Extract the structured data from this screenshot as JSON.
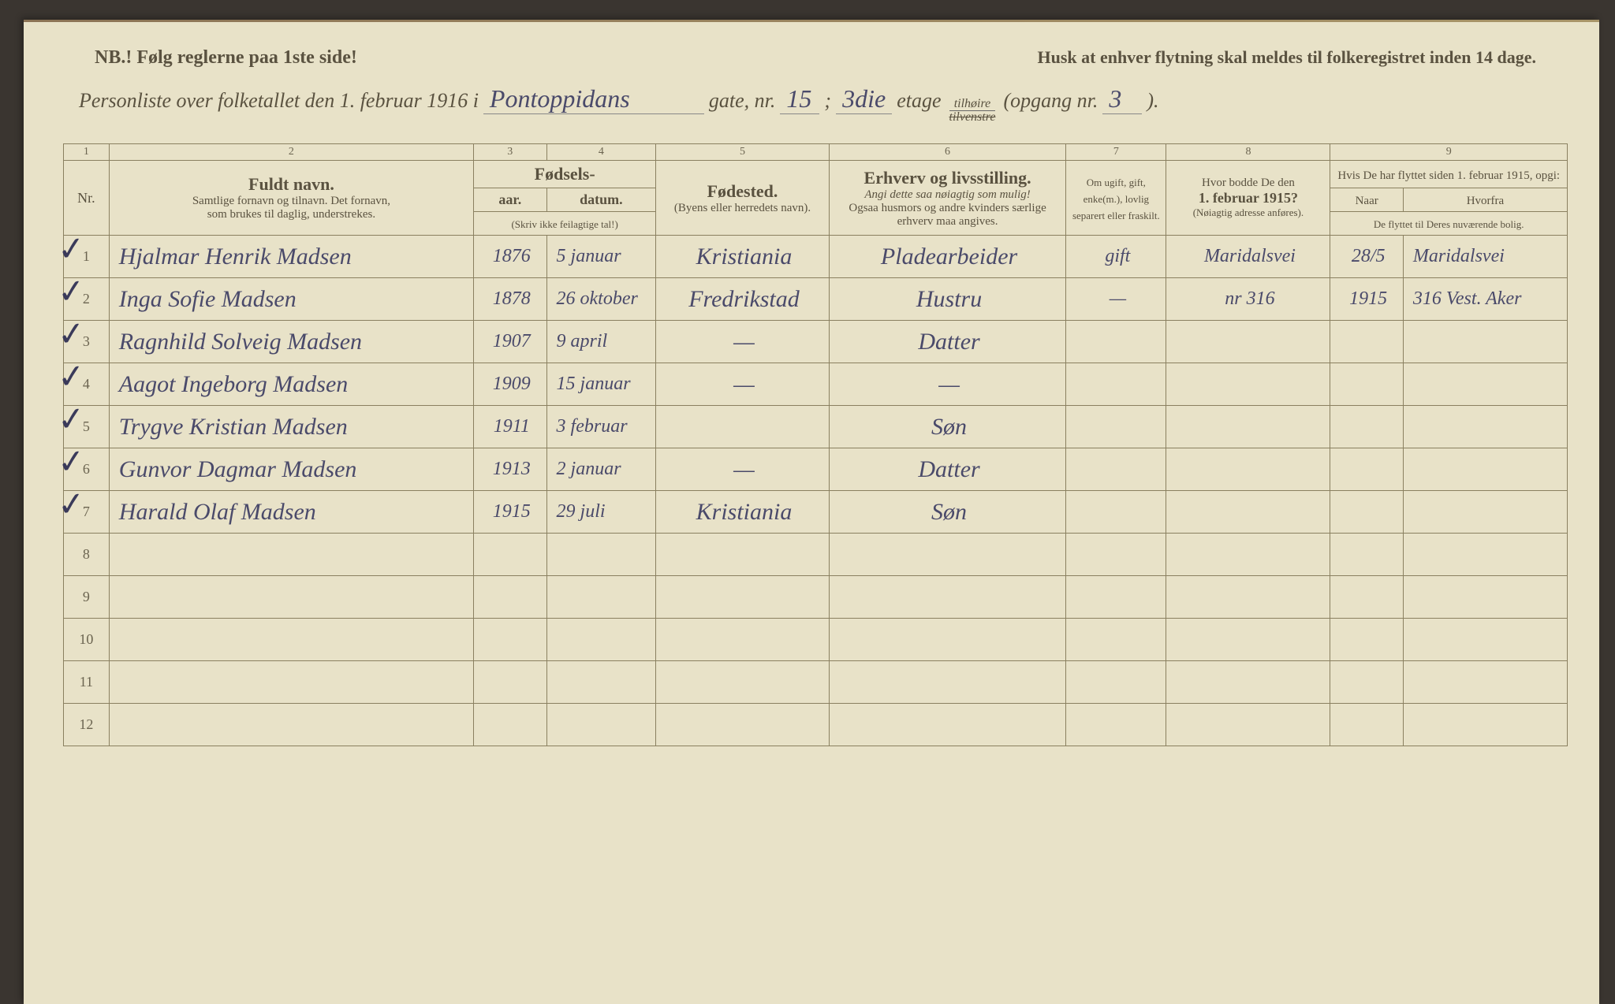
{
  "colors": {
    "paper": "#e8e2c8",
    "ink_print": "#5a5240",
    "ink_hand": "#4a4a6a",
    "rule": "#8a8060",
    "background": "#3a3530"
  },
  "header": {
    "nb": "NB.!  Følg reglerne paa 1ste side!",
    "husk": "Husk at enhver flytning skal meldes til folkeregistret inden 14 dage.",
    "subtitle_prefix": "Personliste over folketallet den 1. februar 1916 i",
    "street": "Pontoppidans",
    "gate_label": "gate, nr.",
    "gate_nr": "15",
    "semicolon": ";",
    "etage_nr": "3die",
    "etage_label": "etage",
    "tilhoire": "tilhøire",
    "tilvenstre": "tilvenstre",
    "opgang_label": "(opgang nr.",
    "opgang_nr": "3",
    "close_paren": ")."
  },
  "columns": {
    "numbers": [
      "1",
      "2",
      "3",
      "4",
      "5",
      "6",
      "7",
      "8",
      "9"
    ],
    "nr": "Nr.",
    "name_main": "Fuldt navn.",
    "name_sub1": "Samtlige fornavn og tilnavn.  Det fornavn,",
    "name_sub2": "som brukes til daglig, understrekes.",
    "fodsels": "Fødsels-",
    "aar": "aar.",
    "datum": "datum.",
    "skriv_ikke": "(Skriv ikke feilagtige tal!)",
    "fodested": "Fødested.",
    "fodested_sub": "(Byens eller herredets navn).",
    "erhverv": "Erhverv og livsstilling.",
    "erhverv_sub1": "Angi dette saa nøiagtig som mulig!",
    "erhverv_sub2": "Ogsaa husmors og andre kvinders særlige erhverv maa angives.",
    "marital": "Om ugift, gift, enke(m.), lovlig separert eller fraskilt.",
    "addr1915": "Hvor bodde De den",
    "addr1915_bold": "1. februar 1915?",
    "addr1915_sub": "(Nøiagtig adresse anføres).",
    "moved": "Hvis De har flyttet siden 1. februar 1915, opgi:",
    "moved_naar": "Naar",
    "moved_hvorfra": "Hvorfra",
    "moved_sub": "De flyttet til Deres nuværende bolig."
  },
  "rows": [
    {
      "nr": "1",
      "check": true,
      "name": "Hjalmar Henrik Madsen",
      "year": "1876",
      "date": "5 januar",
      "birthplace": "Kristiania",
      "occupation": "Pladearbeider",
      "marital": "gift",
      "addr1915": "Maridalsvei",
      "moved_when": "28/5",
      "moved_from": "Maridalsvei"
    },
    {
      "nr": "2",
      "check": true,
      "name": "Inga Sofie Madsen",
      "year": "1878",
      "date": "26 oktober",
      "birthplace": "Fredrikstad",
      "occupation": "Hustru",
      "marital": "—",
      "addr1915": "nr 316",
      "moved_when": "1915",
      "moved_from": "316 Vest. Aker"
    },
    {
      "nr": "3",
      "check": true,
      "name": "Ragnhild Solveig Madsen",
      "year": "1907",
      "date": "9 april",
      "birthplace": "—",
      "occupation": "Datter",
      "marital": "",
      "addr1915": "",
      "moved_when": "",
      "moved_from": ""
    },
    {
      "nr": "4",
      "check": true,
      "name": "Aagot Ingeborg Madsen",
      "year": "1909",
      "date": "15 januar",
      "birthplace": "—",
      "occupation": "—",
      "marital": "",
      "addr1915": "",
      "moved_when": "",
      "moved_from": ""
    },
    {
      "nr": "5",
      "check": true,
      "name": "Trygve Kristian Madsen",
      "year": "1911",
      "date": "3 februar",
      "birthplace": "",
      "occupation": "Søn",
      "marital": "",
      "addr1915": "",
      "moved_when": "",
      "moved_from": ""
    },
    {
      "nr": "6",
      "check": true,
      "name": "Gunvor Dagmar Madsen",
      "year": "1913",
      "date": "2 januar",
      "birthplace": "—",
      "occupation": "Datter",
      "marital": "",
      "addr1915": "",
      "moved_when": "",
      "moved_from": ""
    },
    {
      "nr": "7",
      "check": true,
      "name": "Harald Olaf Madsen",
      "year": "1915",
      "date": "29 juli",
      "birthplace": "Kristiania",
      "occupation": "Søn",
      "marital": "",
      "addr1915": "",
      "moved_when": "",
      "moved_from": ""
    },
    {
      "nr": "8",
      "check": false,
      "name": "",
      "year": "",
      "date": "",
      "birthplace": "",
      "occupation": "",
      "marital": "",
      "addr1915": "",
      "moved_when": "",
      "moved_from": ""
    },
    {
      "nr": "9",
      "check": false,
      "name": "",
      "year": "",
      "date": "",
      "birthplace": "",
      "occupation": "",
      "marital": "",
      "addr1915": "",
      "moved_when": "",
      "moved_from": ""
    },
    {
      "nr": "10",
      "check": false,
      "name": "",
      "year": "",
      "date": "",
      "birthplace": "",
      "occupation": "",
      "marital": "",
      "addr1915": "",
      "moved_when": "",
      "moved_from": ""
    },
    {
      "nr": "11",
      "check": false,
      "name": "",
      "year": "",
      "date": "",
      "birthplace": "",
      "occupation": "",
      "marital": "",
      "addr1915": "",
      "moved_when": "",
      "moved_from": ""
    },
    {
      "nr": "12",
      "check": false,
      "name": "",
      "year": "",
      "date": "",
      "birthplace": "",
      "occupation": "",
      "marital": "",
      "addr1915": "",
      "moved_when": "",
      "moved_from": ""
    }
  ]
}
